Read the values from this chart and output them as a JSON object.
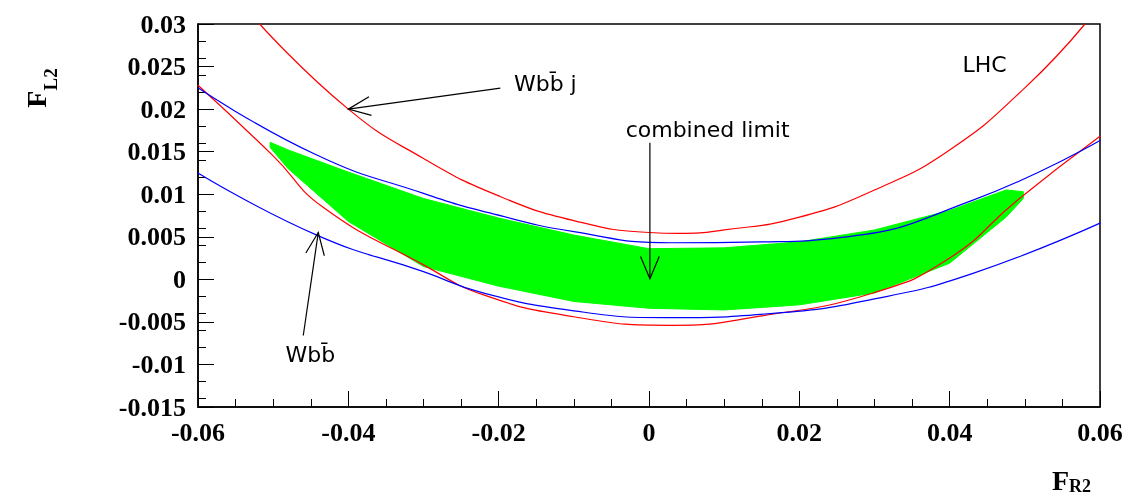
{
  "chart_data": {
    "type": "line",
    "xlabel": "F$_{R2}$",
    "ylabel": "F$_{L2}$",
    "xlim": [
      -0.06,
      0.06
    ],
    "xticks": [
      -0.06,
      -0.04,
      -0.02,
      0,
      0.02,
      0.04,
      0.06
    ],
    "ylim": [
      -0.015,
      0.03
    ],
    "yticks": [
      -0.015,
      -0.01,
      -0.005,
      0,
      0.005,
      0.01,
      0.015,
      0.02,
      0.025,
      0.03
    ],
    "marker": "none",
    "line_style": "solid",
    "annotations": [
      {
        "text": "Wbb̄ j",
        "x": -0.04,
        "y": 0.02
      },
      "combined limit",
      {
        "text": "Wbb̄",
        "x": -0.044,
        "y": 0.0055
      },
      "LHC"
    ],
    "series": [
      {
        "color": "#00ff00",
        "x": [
          -0.0504,
          -0.048,
          -0.04,
          -0.03,
          -0.02,
          -0.01,
          0,
          0.01,
          0.02,
          0.03,
          0.04,
          0.0475,
          0.0498
        ],
        "values": [
          null,
          null,
          null,
          null,
          null,
          null,
          null,
          null,
          null,
          null,
          null,
          null,
          null
        ],
        "lower": [
          0.0155,
          0.013,
          0.0068,
          0.0015,
          -0.0008,
          -0.0026,
          -0.0034,
          -0.0036,
          -0.003,
          -0.0016,
          0.0019,
          0.0073,
          0.0095
        ],
        "upper": [
          0.0161,
          0.0152,
          0.0126,
          0.0095,
          0.0072,
          0.0052,
          0.0036,
          0.0037,
          0.0044,
          0.0058,
          0.0081,
          0.0105,
          0.0103
        ]
      },
      {
        "color": "#ff0000",
        "x": [
          -0.0518,
          -0.04,
          -0.03,
          -0.02,
          -0.01,
          0,
          0.004,
          0.01,
          0.02,
          0.03,
          0.04,
          0.05,
          0.058
        ],
        "values": [
          0.03,
          0.02,
          0.0142,
          0.0098,
          0.0069,
          0.0055,
          0.0054,
          0.0058,
          0.0073,
          0.0105,
          0.0152,
          0.0225,
          0.03
        ]
      },
      {
        "color": "#ff0000",
        "x": [
          -0.06,
          -0.05,
          -0.0434,
          -0.03,
          -0.0221,
          -0.01,
          0.003,
          0.015,
          0.0298,
          0.04,
          0.049,
          0.06
        ],
        "values": [
          0.0228,
          0.0145,
          0.0085,
          0.0017,
          -0.0018,
          -0.0044,
          -0.0054,
          -0.0043,
          -0.0016,
          0.0025,
          0.0093,
          0.0168
        ]
      },
      {
        "color": "#0000ff",
        "x": [
          -0.06,
          -0.0442,
          -0.03,
          -0.0212,
          -0.01,
          0.003,
          0.015,
          0.0254,
          0.0431,
          0.06
        ],
        "values": [
          0.0225,
          0.0146,
          0.0101,
          0.0078,
          0.0056,
          0.0043,
          0.0044,
          0.0049,
          0.0093,
          0.0163
        ]
      },
      {
        "color": "#0000ff",
        "x": [
          -0.06,
          -0.0442,
          -0.03,
          -0.0221,
          -0.01,
          0.0024,
          0.0165,
          0.03,
          0.0431,
          0.06
        ],
        "values": [
          0.0125,
          0.0052,
          0.0009,
          -0.0016,
          -0.0037,
          -0.0045,
          -0.004,
          -0.0023,
          0.0007,
          0.0066
        ]
      }
    ]
  }
}
